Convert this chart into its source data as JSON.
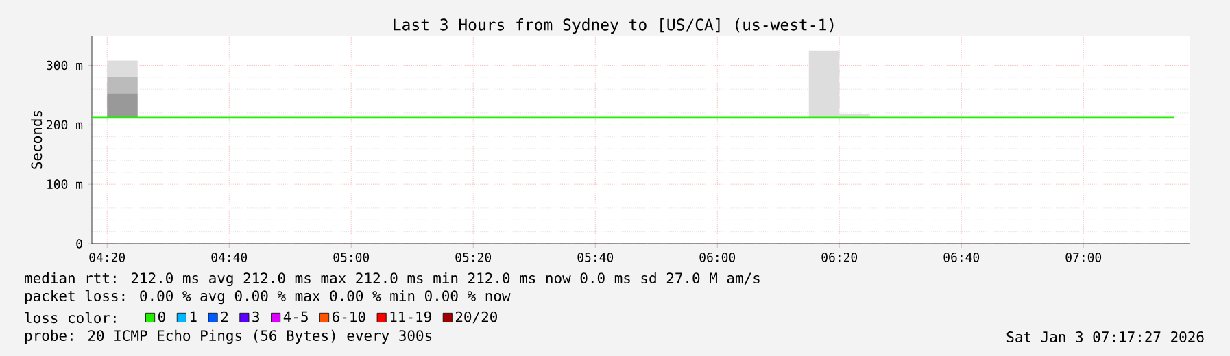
{
  "chart_data": {
    "type": "bar",
    "title": "Last 3 Hours from Sydney to [US/CA] (us-west-1)",
    "ylabel": "Seconds",
    "xlim": [
      4.2917,
      7.2917
    ],
    "ylim": [
      0,
      350
    ],
    "xticks": [
      {
        "value": 4.3333,
        "label": "04:20"
      },
      {
        "value": 4.6667,
        "label": "04:40"
      },
      {
        "value": 5,
        "label": "05:00"
      },
      {
        "value": 5.3333,
        "label": "05:20"
      },
      {
        "value": 5.6667,
        "label": "05:40"
      },
      {
        "value": 6,
        "label": "06:00"
      },
      {
        "value": 6.3333,
        "label": "06:20"
      },
      {
        "value": 6.6667,
        "label": "06:40"
      },
      {
        "value": 7,
        "label": "07:00"
      }
    ],
    "yticks": [
      0,
      {
        "value": 100,
        "label": "100 m"
      },
      {
        "value": 200,
        "label": "200 m"
      },
      {
        "value": 300,
        "label": "300 m"
      }
    ],
    "grid": true,
    "legend": "bottom",
    "legend_title": "loss color:",
    "series": [
      {
        "color": "#999999",
        "x": [
          4.375
        ],
        "base": [
          212
        ],
        "values": [
          41
        ]
      },
      {
        "color": "#bbbbbb",
        "x": [
          4.375
        ],
        "base": [
          253
        ],
        "values": [
          27
        ]
      },
      {
        "color": "#dddddd",
        "x": [
          4.375,
          6.2917,
          6.375
        ],
        "base": [
          280,
          212,
          212
        ],
        "values": [
          28,
          113,
          6
        ]
      },
      {
        "type": "line",
        "name": "0",
        "color": "#22ee00",
        "x": [
          4.2917,
          7.247
        ],
        "values": [
          212,
          212
        ]
      },
      {
        "type": "line",
        "name": "1",
        "color": "#00b8ff"
      },
      {
        "type": "line",
        "name": "2",
        "color": "#0059ff"
      },
      {
        "type": "line",
        "name": "3",
        "color": "#5e00ff"
      },
      {
        "type": "line",
        "name": "4-5",
        "color": "#dd00ff"
      },
      {
        "type": "line",
        "name": "6-10",
        "color": "#ff5500"
      },
      {
        "type": "line",
        "name": "11-19",
        "color": "#ff0000"
      },
      {
        "type": "line",
        "name": "20/20",
        "color": "#a10000"
      }
    ],
    "annotations": [
      "median rtt:  212.0 ms avg  212.0 ms max  212.0 ms min  212.0 ms now  0.0 ms sd  27.0 M am/s",
      "packet loss: 0.00 % avg  0.00 % max  0.00 % min  0.00 % now",
      "probe:       20 ICMP Echo Pings (56 Bytes) every 300s",
      "Sat Jan  3 07:17:27 2026"
    ]
  }
}
